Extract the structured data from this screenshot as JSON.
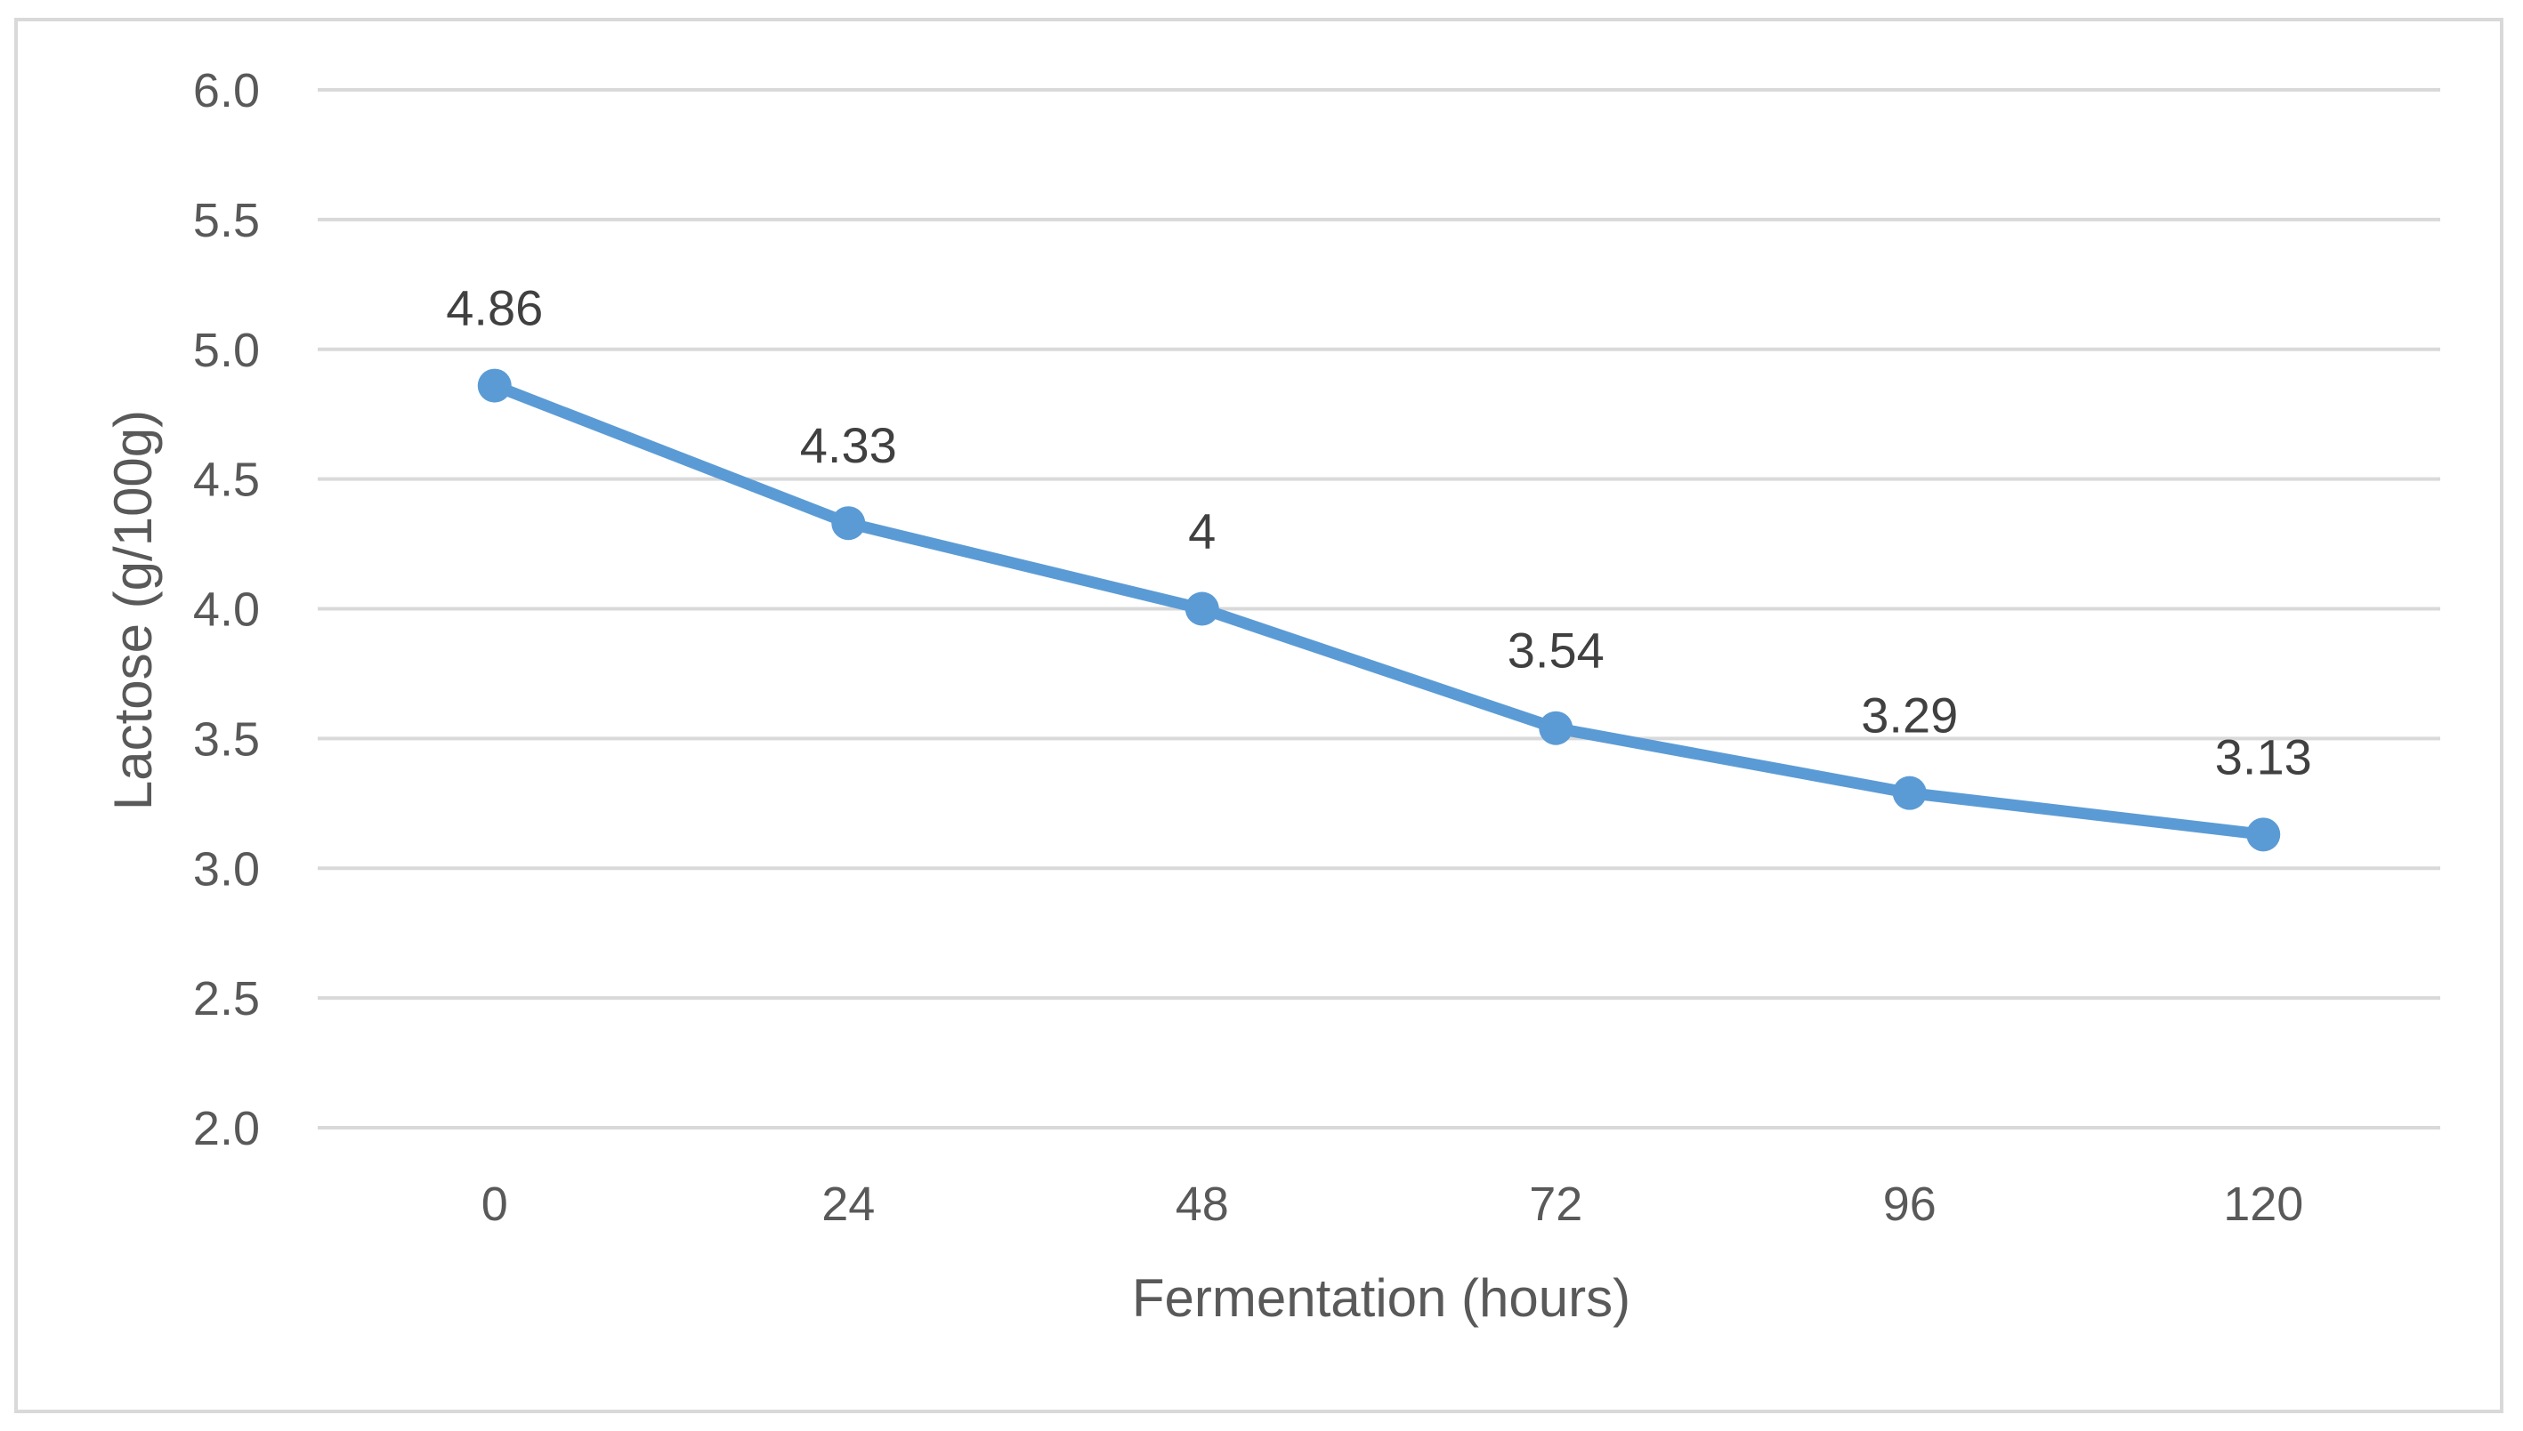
{
  "chart_data": {
    "type": "line",
    "title": "",
    "xlabel": "Fermentation (hours)",
    "ylabel": "Lactose (g/100g)",
    "categories": [
      "0",
      "24",
      "48",
      "72",
      "96",
      "120"
    ],
    "series": [
      {
        "name": "Lactose",
        "values": [
          4.86,
          4.33,
          4,
          3.54,
          3.29,
          3.13
        ],
        "labels": [
          "4.86",
          "4.33",
          "4",
          "3.54",
          "3.29",
          "3.13"
        ],
        "color": "#5b9bd5"
      }
    ],
    "ylim": [
      2.0,
      6.0
    ],
    "yticks": [
      "2.0",
      "2.5",
      "3.0",
      "3.5",
      "4.0",
      "4.5",
      "5.0",
      "5.5",
      "6.0"
    ],
    "grid": true,
    "legend": "none"
  }
}
